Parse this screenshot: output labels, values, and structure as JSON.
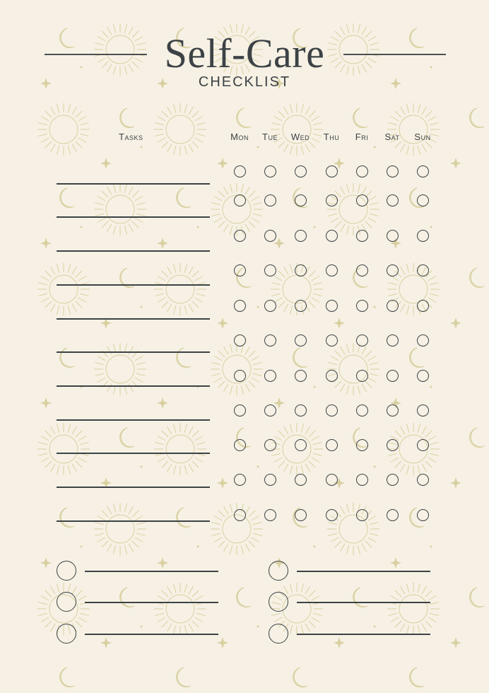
{
  "header": {
    "title": "Self-Care",
    "subtitle": "CHECKLIST"
  },
  "columns": {
    "tasks_label": "Tasks",
    "days": [
      "Mon",
      "Tue",
      "Wed",
      "Thu",
      "Fri",
      "Sat",
      "Sun"
    ]
  },
  "colors": {
    "background": "#f6f1e4",
    "ink": "#3c4246",
    "pattern": "#d9d0a2"
  },
  "decoration_icons": [
    "sun-icon",
    "moon-icon",
    "star-icon",
    "comet-icon"
  ]
}
